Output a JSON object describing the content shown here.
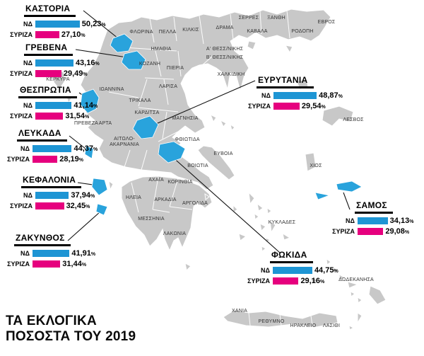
{
  "main_title": {
    "line1": "ΤΑ ΕΚΛΟΓΙΚΑ",
    "line2": "ΠΟΣΟΣΤΑ ΤΟΥ 2019"
  },
  "parties": {
    "nd": "ΝΔ",
    "syriza": "ΣΥΡΙΖΑ"
  },
  "percent_sign": "%",
  "colors": {
    "nd": "#1e95d4",
    "syriza": "#e6007e",
    "highlight": "#29a3dc",
    "land": "#c8c8c8"
  },
  "callouts": [
    {
      "region": "ΚΑΣΤΟΡΙΑ",
      "nd": {
        "value": 50.23,
        "label": "50,23"
      },
      "syriza": {
        "value": 27.1,
        "label": "27,10"
      }
    },
    {
      "region": "ΓΡΕΒΕΝΑ",
      "nd": {
        "value": 43.16,
        "label": "43,16"
      },
      "syriza": {
        "value": 29.49,
        "label": "29,49"
      }
    },
    {
      "region": "ΘΕΣΠΡΩΤΙΑ",
      "nd": {
        "value": 41.14,
        "label": "41,14"
      },
      "syriza": {
        "value": 31.54,
        "label": "31,54"
      }
    },
    {
      "region": "ΛΕΥΚΑΔΑ",
      "nd": {
        "value": 44.37,
        "label": "44,37"
      },
      "syriza": {
        "value": 28.19,
        "label": "28,19"
      }
    },
    {
      "region": "ΚΕΦΑΛΟΝΙΑ",
      "nd": {
        "value": 37.94,
        "label": "37,94"
      },
      "syriza": {
        "value": 32.45,
        "label": "32,45"
      }
    },
    {
      "region": "ΖΑΚΥΝΘΟΣ",
      "nd": {
        "value": 41.91,
        "label": "41,91"
      },
      "syriza": {
        "value": 31.44,
        "label": "31,44"
      }
    },
    {
      "region": "ΕΥΡΥΤΑΝΙΑ",
      "nd": {
        "value": 48.87,
        "label": "48,87"
      },
      "syriza": {
        "value": 29.54,
        "label": "29,54"
      }
    },
    {
      "region": "ΣΑΜΟΣ",
      "nd": {
        "value": 34.13,
        "label": "34,13"
      },
      "syriza": {
        "value": 29.08,
        "label": "29,08"
      }
    },
    {
      "region": "ΦΩΚΙΔΑ",
      "nd": {
        "value": 44.75,
        "label": "44,75"
      },
      "syriza": {
        "value": 29.16,
        "label": "29,16"
      }
    }
  ],
  "map_labels": [
    "ΦΛΩΡΙΝΑ",
    "ΠΕΛΛΑ",
    "ΚΙΛΚΙΣ",
    "ΔΡΑΜΑ",
    "ΣΕΡΡΕΣ",
    "ΞΑΝΘΗ",
    "ΕΒΡΟΣ",
    "ΚΑΒΑΛΑ",
    "ΡΟΔΟΠΗ",
    "Α' ΘΕΣΣ/ΝΙΚΗΣ",
    "Β' ΘΕΣΣ/ΝΙΚΗΣ",
    "ΗΜΑΘΙΑ",
    "ΚΟΖΑΝΗ",
    "ΠΙΕΡΙΑ",
    "ΧΑΛΚΙΔΙΚΗ",
    "ΚΕΡΚΥΡΑ",
    "ΙΩΑΝΝΙΝΑ",
    "ΛΑΡΙΣΑ",
    "ΤΡΙΚΑΛΑ",
    "ΚΑΡΔΙΤΣΑ",
    "ΜΑΓΝΗΣΙΑ",
    "ΠΡΕΒΕΖΑ",
    "ΑΡΤΑ",
    "ΑΙΤΩΛΟ-ΑΚΑΡΝΑΝΙΑ",
    "ΦΘΙΩΤΙΔΑ",
    "ΕΥΒΟΙΑ",
    "ΒΟΙΩΤΙΑ",
    "ΑΧΑΪΑ",
    "ΚΟΡΙΝΘΙΑ",
    "ΗΛΕΙΑ",
    "ΑΡΚΑΔΙΑ",
    "ΑΡΓΟΛΙΔΑ",
    "ΜΕΣΣΗΝΙΑ",
    "ΛΑΚΩΝΙΑ",
    "ΛΕΣΒΟΣ",
    "ΧΙΟΣ",
    "ΚΥΚΛΑΔΕΣ",
    "ΔΩΔΕΚΑΝΗΣΑ",
    "ΧΑΝΙΑ",
    "ΡΕΘΥΜΝΟ",
    "ΗΡΑΚΛΕΙΟ",
    "ΛΑΣΙΘΙ"
  ],
  "chart_data": {
    "type": "bar",
    "title": "ΤΑ ΕΚΛΟΓΙΚΑ ΠΟΣΟΣΤΑ ΤΟΥ 2019",
    "categories": [
      "ΚΑΣΤΟΡΙΑ",
      "ΓΡΕΒΕΝΑ",
      "ΘΕΣΠΡΩΤΙΑ",
      "ΛΕΥΚΑΔΑ",
      "ΚΕΦΑΛΟΝΙΑ",
      "ΖΑΚΥΝΘΟΣ",
      "ΕΥΡΥΤΑΝΙΑ",
      "ΣΑΜΟΣ",
      "ΦΩΚΙΔΑ"
    ],
    "series": [
      {
        "name": "ΝΔ",
        "values": [
          50.23,
          43.16,
          41.14,
          44.37,
          37.94,
          41.91,
          48.87,
          34.13,
          44.75
        ]
      },
      {
        "name": "ΣΥΡΙΖΑ",
        "values": [
          27.1,
          29.49,
          31.54,
          28.19,
          32.45,
          31.44,
          29.54,
          29.08,
          29.16
        ]
      }
    ],
    "unit": "%"
  }
}
